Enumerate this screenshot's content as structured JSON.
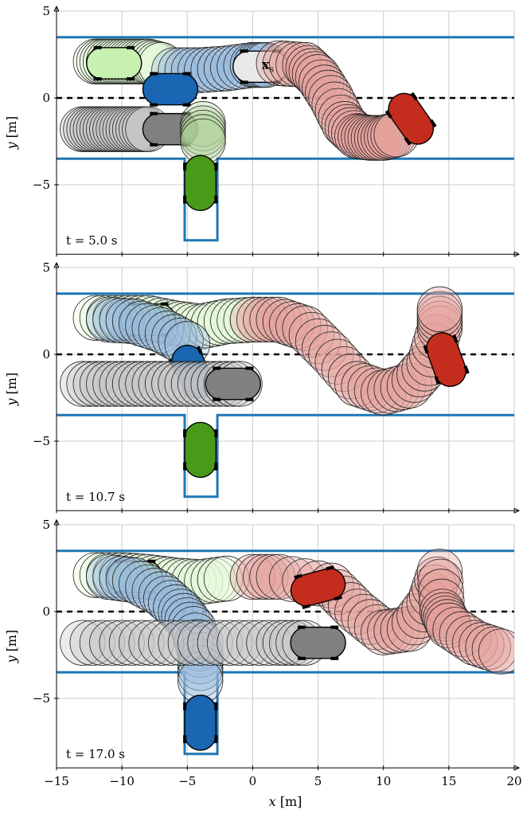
{
  "chart_data": [
    {
      "type": "scatter",
      "panel": 1,
      "time_label": "t = 5.0 s",
      "xlabel": "",
      "ylabel": "y [m]",
      "xlim": [
        -15,
        20
      ],
      "ylim": [
        -9,
        5
      ],
      "yticks": [
        -5,
        0,
        5
      ],
      "xticks": [
        -15,
        -10,
        -5,
        0,
        5,
        10,
        15,
        20
      ],
      "grid": true,
      "road_boundaries": [
        {
          "y": 3.5
        },
        {
          "y": -3.5,
          "notch": {
            "x_from": -5.2,
            "x_to": -2.7,
            "y_bottom": -8.2
          }
        }
      ],
      "centerline_y": 0,
      "state_label": {
        "text": "x",
        "sub": "s",
        "x": 0.7,
        "y": 1.9
      },
      "vehicles": [
        {
          "color": "#c8f0b0",
          "label": "light-green",
          "trail": [
            [
              -12,
              2.1
            ],
            [
              -11,
              2.1
            ],
            [
              -10,
              2.1
            ],
            [
              -9,
              2.1
            ],
            [
              -8,
              2.1
            ],
            [
              -7,
              1.9
            ]
          ],
          "x": -10.6,
          "y": 2.0,
          "heading": 0
        },
        {
          "color": "#1a66b3",
          "label": "blue",
          "trail": [
            [
              -6,
              1.6
            ],
            [
              -4,
              1.6
            ],
            [
              -2,
              1.7
            ],
            [
              0,
              1.9
            ],
            [
              1,
              1.9
            ]
          ],
          "x": -6.3,
          "y": 0.5,
          "heading": 0
        },
        {
          "color": "#e8e8e8",
          "label": "light-grey",
          "trail": [],
          "x": 0.6,
          "y": 1.8,
          "heading": 0
        },
        {
          "color": "#c42d1e",
          "label": "red",
          "trail": [
            [
              2,
              2.0
            ],
            [
              4,
              1.9
            ],
            [
              5,
              1.2
            ],
            [
              6,
              0
            ],
            [
              7,
              -1.5
            ],
            [
              8,
              -2.2
            ],
            [
              9,
              -2.3
            ],
            [
              10,
              -2.3
            ],
            [
              11,
              -2.1
            ]
          ],
          "x": 12.1,
          "y": -1.2,
          "heading": 55
        },
        {
          "color": "#808080",
          "label": "grey",
          "trail": [
            [
              -13,
              -1.8
            ],
            [
              -12,
              -1.8
            ],
            [
              -11,
              -1.8
            ],
            [
              -10,
              -1.8
            ],
            [
              -9,
              -1.8
            ],
            [
              -8,
              -1.8
            ]
          ],
          "x": -6.3,
          "y": -1.8,
          "heading": 0
        },
        {
          "color": "#4a9a1a",
          "label": "green",
          "trail": [
            [
              -3.8,
              -1.5
            ],
            [
              -3.8,
              -2.5
            ]
          ],
          "x": -4.0,
          "y": -4.9,
          "heading": 90
        }
      ]
    },
    {
      "type": "scatter",
      "panel": 2,
      "time_label": "t = 10.7 s",
      "xlabel": "",
      "ylabel": "y [m]",
      "xlim": [
        -15,
        20
      ],
      "ylim": [
        -9,
        5
      ],
      "yticks": [
        -5,
        0,
        5
      ],
      "xticks": [
        -15,
        -10,
        -5,
        0,
        5,
        10,
        15,
        20
      ],
      "grid": true,
      "road_boundaries": [
        {
          "y": 3.5
        },
        {
          "y": -3.5,
          "notch": {
            "x_from": -5.2,
            "x_to": -2.7,
            "y_bottom": -8.2
          }
        }
      ],
      "centerline_y": 0,
      "vehicles": [
        {
          "color": "#c8f0b0",
          "label": "light-green",
          "trail": [
            [
              -12,
              2.1
            ],
            [
              -10,
              2.1
            ],
            [
              -8,
              2.1
            ],
            [
              -6,
              1.8
            ],
            [
              -4,
              1.6
            ],
            [
              -2,
              1.9
            ],
            [
              0,
              2.0
            ]
          ],
          "x": -8.0,
          "y": 2.0,
          "heading": 0
        },
        {
          "color": "#1a66b3",
          "label": "blue",
          "trail": [
            [
              -11,
              2.0
            ],
            [
              -9,
              1.9
            ],
            [
              -7,
              1.4
            ],
            [
              -5,
              0.6
            ]
          ],
          "x": -4.6,
          "y": -1.0,
          "heading": 65
        },
        {
          "color": "#c42d1e",
          "label": "red",
          "trail": [
            [
              0,
              2.0
            ],
            [
              2,
              2.0
            ],
            [
              4,
              1.5
            ],
            [
              6,
              0
            ],
            [
              8,
              -1.7
            ],
            [
              10,
              -2.2
            ],
            [
              12,
              -1.8
            ],
            [
              13.5,
              -0.5
            ],
            [
              14.3,
              1.5
            ],
            [
              14.3,
              2.6
            ]
          ],
          "x": 14.8,
          "y": -0.3,
          "heading": 70
        },
        {
          "color": "#808080",
          "label": "grey",
          "trail": [
            [
              -13,
              -1.7
            ],
            [
              -11,
              -1.7
            ],
            [
              -9,
              -1.7
            ],
            [
              -7,
              -1.7
            ],
            [
              -5,
              -1.7
            ],
            [
              -3,
              -1.7
            ],
            [
              -1,
              -1.7
            ]
          ],
          "x": -1.5,
          "y": -1.7,
          "heading": 0
        },
        {
          "color": "#4a9a1a",
          "label": "green",
          "trail": [],
          "x": -4.0,
          "y": -5.5,
          "heading": 90
        }
      ]
    },
    {
      "type": "scatter",
      "panel": 3,
      "time_label": "t = 17.0 s",
      "xlabel": "x [m]",
      "ylabel": "y [m]",
      "xlim": [
        -15,
        20
      ],
      "ylim": [
        -9,
        5
      ],
      "yticks": [
        -5,
        0,
        5
      ],
      "xticks": [
        -15,
        -10,
        -5,
        0,
        5,
        10,
        15,
        20
      ],
      "grid": true,
      "road_boundaries": [
        {
          "y": 3.5
        },
        {
          "y": -3.5,
          "notch": {
            "x_from": -5.2,
            "x_to": -2.7,
            "y_bottom": -8.2
          }
        }
      ],
      "centerline_y": 0,
      "vehicles": [
        {
          "color": "#c8f0b0",
          "label": "light-green",
          "trail": [
            [
              -12,
              2.1
            ],
            [
              -10,
              2.1
            ],
            [
              -8,
              2.0
            ],
            [
              -6,
              1.8
            ],
            [
              -4,
              1.7
            ],
            [
              -2,
              1.9
            ]
          ],
          "x": -9.0,
          "y": 2.0,
          "heading": 0
        },
        {
          "color": "#1a66b3",
          "label": "blue",
          "trail": [
            [
              -11,
              2.0
            ],
            [
              -9,
              1.8
            ],
            [
              -7,
              1.0
            ],
            [
              -5.5,
              0
            ],
            [
              -4.5,
              -1.0
            ],
            [
              -4,
              -2.5
            ],
            [
              -4,
              -4.0
            ]
          ],
          "x": -4.0,
          "y": -6.4,
          "heading": 90
        },
        {
          "color": "#c42d1e",
          "label": "red",
          "trail": [
            [
              0,
              2.0
            ],
            [
              2,
              2.0
            ],
            [
              6,
              1.5
            ],
            [
              8,
              0
            ],
            [
              10,
              -1.2
            ],
            [
              12,
              -1.0
            ],
            [
              13.5,
              0.5
            ],
            [
              14.3,
              2.3
            ],
            [
              14.5,
              0
            ],
            [
              15,
              -0.8
            ],
            [
              17,
              -1.8
            ],
            [
              19,
              -2.3
            ]
          ],
          "x": 5.0,
          "y": 1.4,
          "heading": -15
        },
        {
          "color": "#808080",
          "label": "grey",
          "trail": [
            [
              -13,
              -1.8
            ],
            [
              -10,
              -1.8
            ],
            [
              -7,
              -1.8
            ],
            [
              -4,
              -1.8
            ],
            [
              -1,
              -1.8
            ],
            [
              2,
              -1.8
            ],
            [
              4,
              -1.8
            ]
          ],
          "x": 5.0,
          "y": -1.8,
          "heading": 0
        }
      ]
    }
  ]
}
